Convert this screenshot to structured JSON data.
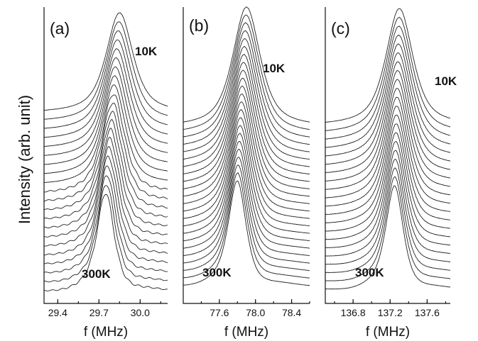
{
  "chart_data": [
    {
      "type": "line",
      "panel": "(a)",
      "ylabel": "Intensity (arb. unit)",
      "xlabel": "f (MHz)",
      "xlim": [
        29.3,
        30.2
      ],
      "xticks": [
        29.4,
        29.7,
        30.0
      ],
      "xticklabels": [
        "29.4",
        "29.7",
        "30.0"
      ],
      "annotations": [
        "10K",
        "300K"
      ],
      "series_count": 21,
      "peak_position_range_mhz": [
        29.75,
        29.85
      ],
      "width_mhz": 0.16
    },
    {
      "type": "line",
      "panel": "(b)",
      "xlabel": "f (MHz)",
      "xlim": [
        77.2,
        78.6
      ],
      "xticks": [
        77.6,
        78.0,
        78.4
      ],
      "xticklabels": [
        "77.6",
        "78.0",
        "78.4"
      ],
      "annotations": [
        "10K",
        "300K"
      ],
      "series_count": 23,
      "peak_position_range_mhz": [
        77.8,
        77.9
      ],
      "width_mhz": 0.25
    },
    {
      "type": "line",
      "panel": "(c)",
      "xlabel": "f (MHz)",
      "xlim": [
        136.5,
        137.85
      ],
      "xticks": [
        136.8,
        137.2,
        137.6
      ],
      "xticklabels": [
        "136.8",
        "137.2",
        "137.6"
      ],
      "annotations": [
        "10K",
        "300K"
      ],
      "series_count": 21,
      "peak_position_range_mhz": [
        137.25,
        137.3
      ],
      "width_mhz": 0.24
    }
  ]
}
